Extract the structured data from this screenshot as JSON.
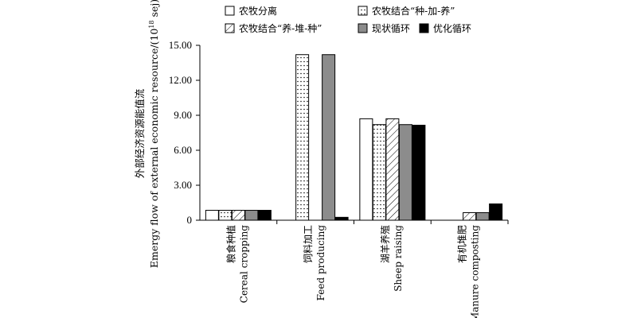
{
  "chart_data": {
    "type": "bar",
    "ylabel_cn": "外部经济资源能值流",
    "ylabel_en": "Emergy flow of external economic resource/(10",
    "ylabel_sup": "18",
    "ylabel_unit": " sej)",
    "ylim": [
      0,
      15
    ],
    "yticks": [
      "0",
      "3.00",
      "6.00",
      "9.00",
      "12.00",
      "15.00"
    ],
    "ytick_values": [
      0,
      3,
      6,
      9,
      12,
      15
    ],
    "grid": false,
    "legend_position": "top",
    "categories": [
      {
        "cn": "粮食种植",
        "en": "Cereal cropping"
      },
      {
        "cn": "饲料加工",
        "en": "Feed producing"
      },
      {
        "cn": "湖羊养殖",
        "en": "Sheep raising"
      },
      {
        "cn": "有机堆肥",
        "en": "Manure composting"
      }
    ],
    "series": [
      {
        "name": "农牧分离",
        "pattern": "white",
        "values": [
          0.85,
          0,
          8.7,
          0
        ]
      },
      {
        "name": "农牧结合“种-加-养”",
        "pattern": "dots",
        "values": [
          0.85,
          14.2,
          8.2,
          0
        ]
      },
      {
        "name": "农牧结合“养-堆-种”",
        "pattern": "hatch",
        "values": [
          0.85,
          0,
          8.7,
          0.65
        ]
      },
      {
        "name": "现状循环",
        "pattern": "gray",
        "values": [
          0.85,
          14.2,
          8.2,
          0.65
        ]
      },
      {
        "name": "优化循环",
        "pattern": "black",
        "values": [
          0.85,
          0.25,
          8.15,
          1.4
        ]
      }
    ]
  }
}
